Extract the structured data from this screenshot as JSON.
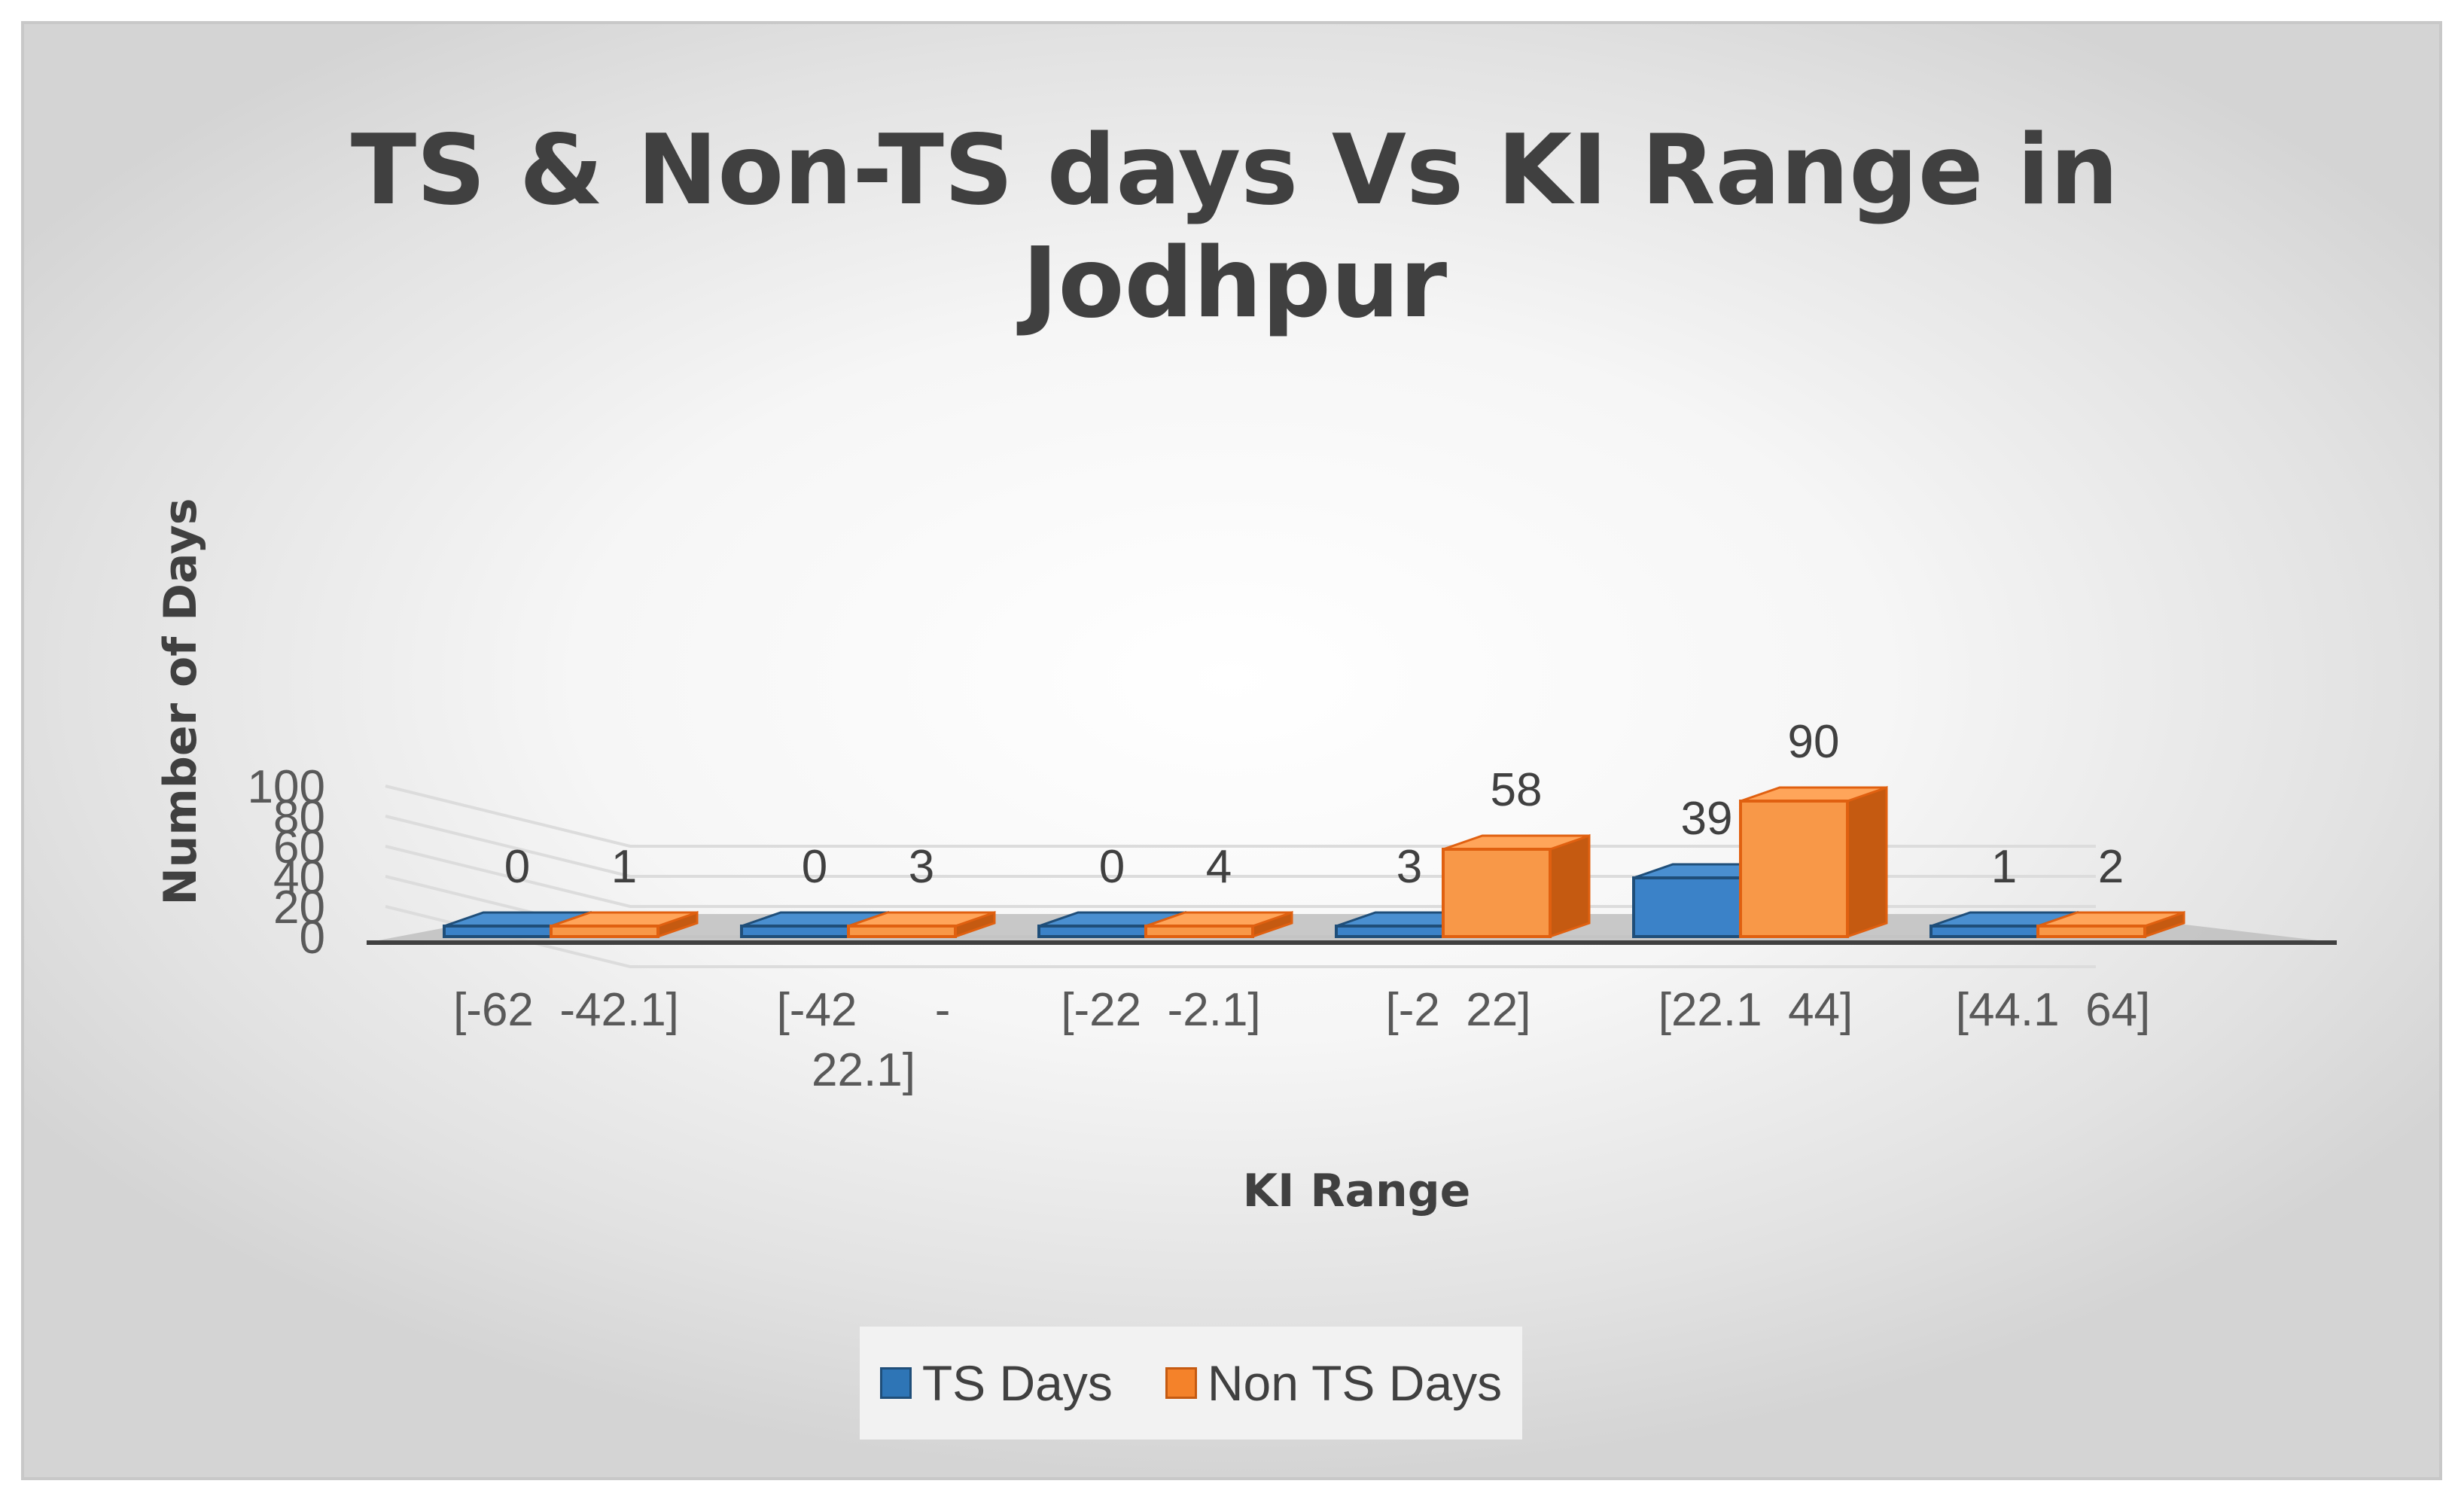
{
  "chart_data": {
    "type": "bar",
    "title_lines": [
      "TS & Non-TS days Vs KI Range in",
      "Jodhpur"
    ],
    "xlabel": "KI Range",
    "ylabel": "Number of Days",
    "categories": [
      [
        "[-62  -42.1]"
      ],
      [
        "[-42      -",
        "22.1]"
      ],
      [
        "[-22  -2.1]"
      ],
      [
        "[-2  22]"
      ],
      [
        "[22.1  44]"
      ],
      [
        "[44.1  64]"
      ]
    ],
    "series": [
      {
        "name": "TS Days",
        "values": [
          0,
          0,
          0,
          3,
          39,
          1
        ],
        "color": "#2e75b6"
      },
      {
        "name": "Non TS Days",
        "values": [
          1,
          3,
          4,
          58,
          90,
          2
        ],
        "color": "#f4822a"
      }
    ],
    "y_ticks": [
      "0",
      "20",
      "40",
      "60",
      "80",
      "100"
    ],
    "ylim": [
      0,
      100
    ],
    "grid": true,
    "legend_position": "bottom",
    "render_style": "3d-clustered-column"
  }
}
